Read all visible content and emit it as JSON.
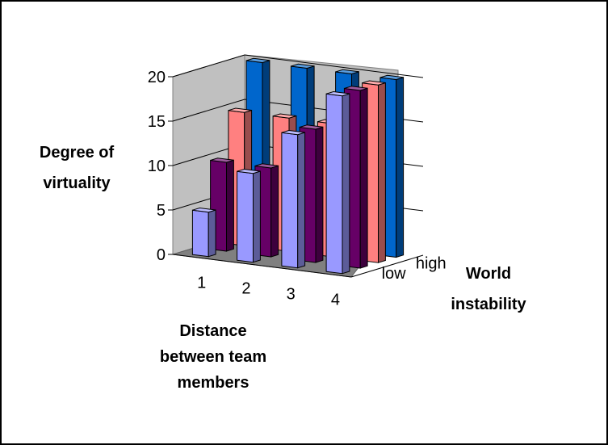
{
  "chart_data": {
    "type": "bar",
    "subtype": "3d-clustered-column",
    "title": "",
    "ylabel": "Degree of virtuality",
    "xlabel": "Distance between team members",
    "zlabel": "World instability",
    "categories": [
      "1",
      "2",
      "3",
      "4"
    ],
    "depth_tick_labels": [
      "low",
      "high"
    ],
    "ylim": [
      0,
      20
    ],
    "yticks": [
      "0",
      "5",
      "10",
      "15",
      "20"
    ],
    "grid": true,
    "legend": "none",
    "series": [
      {
        "depth": 0,
        "color": "#9999ff",
        "values": [
          5,
          10,
          15,
          20
        ]
      },
      {
        "depth": 1,
        "color": "#660066",
        "values": [
          10,
          10,
          15,
          20
        ]
      },
      {
        "depth": 2,
        "color": "#ff8080",
        "values": [
          15,
          15,
          15,
          20
        ]
      },
      {
        "depth": 3,
        "color": "#0066cc",
        "values": [
          20,
          20,
          20,
          20
        ]
      }
    ]
  }
}
